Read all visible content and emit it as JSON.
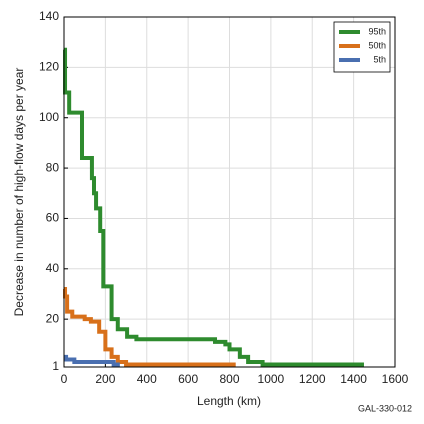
{
  "chart_data": {
    "type": "line",
    "step": true,
    "x_label": "Length (km)",
    "y_label": "Decrease in number of high-flow days per year",
    "annotation": "GAL-330-012",
    "xlim": [
      0,
      1600
    ],
    "xticks": [
      0,
      200,
      400,
      600,
      800,
      1000,
      1200,
      1400,
      1600
    ],
    "ylim": [
      1,
      140
    ],
    "yticks": [
      1,
      20,
      40,
      60,
      80,
      100,
      120,
      140
    ],
    "grid": true,
    "legend": "upper right",
    "series": [
      {
        "name": "95th",
        "color": "#2e8b2e",
        "x": [
          0,
          5,
          25,
          87,
          135,
          145,
          155,
          175,
          190,
          230,
          260,
          305,
          350,
          730,
          780,
          800,
          850,
          890,
          960,
          1450
        ],
        "values": [
          127,
          110,
          102,
          84,
          76,
          70,
          64,
          55,
          33,
          20,
          16,
          13,
          12,
          11,
          10,
          8,
          5,
          3,
          2,
          2
        ]
      },
      {
        "name": "50th",
        "color": "#d8701a",
        "x": [
          0,
          5,
          15,
          40,
          100,
          130,
          170,
          200,
          230,
          260,
          300,
          830
        ],
        "values": [
          32,
          29,
          23,
          21,
          20,
          19,
          15,
          8,
          5,
          3,
          2,
          2
        ]
      },
      {
        "name": "5th",
        "color": "#4a6fb0",
        "x": [
          0,
          10,
          50,
          240,
          270
        ],
        "values": [
          5,
          4,
          3,
          2,
          2
        ]
      }
    ]
  }
}
